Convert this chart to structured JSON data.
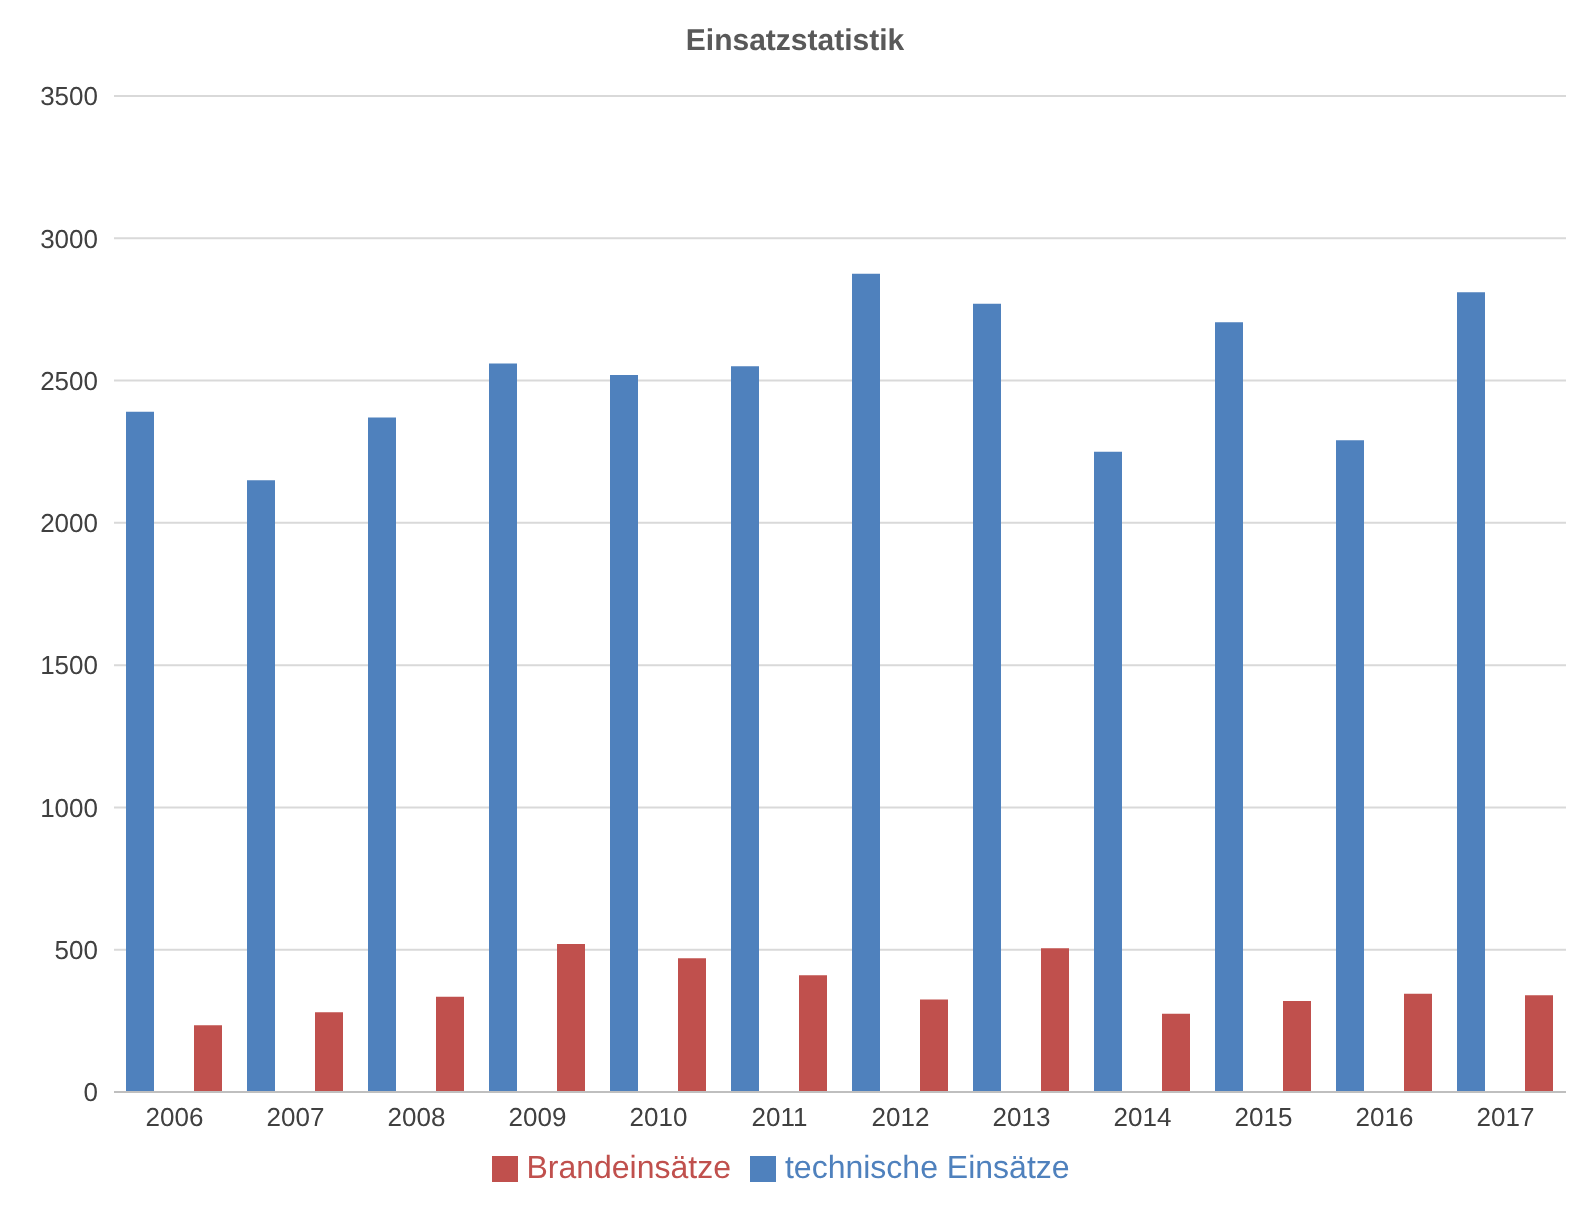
{
  "chart_data": {
    "type": "bar",
    "title": "Einsatzstatistik",
    "categories": [
      "2006",
      "2007",
      "2008",
      "2009",
      "2010",
      "2011",
      "2012",
      "2013",
      "2014",
      "2015",
      "2016",
      "2017"
    ],
    "series": [
      {
        "name": "technische Einsätze",
        "color": "#4f81bd",
        "values": [
          2390,
          2150,
          2370,
          2560,
          2520,
          2550,
          2875,
          2770,
          2250,
          2705,
          2290,
          2810
        ]
      },
      {
        "name": "Brandeinsätze",
        "color": "#c0504d",
        "values": [
          235,
          280,
          335,
          520,
          470,
          410,
          325,
          505,
          275,
          320,
          345,
          340
        ]
      }
    ],
    "ylim": [
      0,
      3500
    ],
    "yticks": [
      0,
      500,
      1000,
      1500,
      2000,
      2500,
      3000,
      3500
    ],
    "grid": "y",
    "legend": "bottom"
  }
}
